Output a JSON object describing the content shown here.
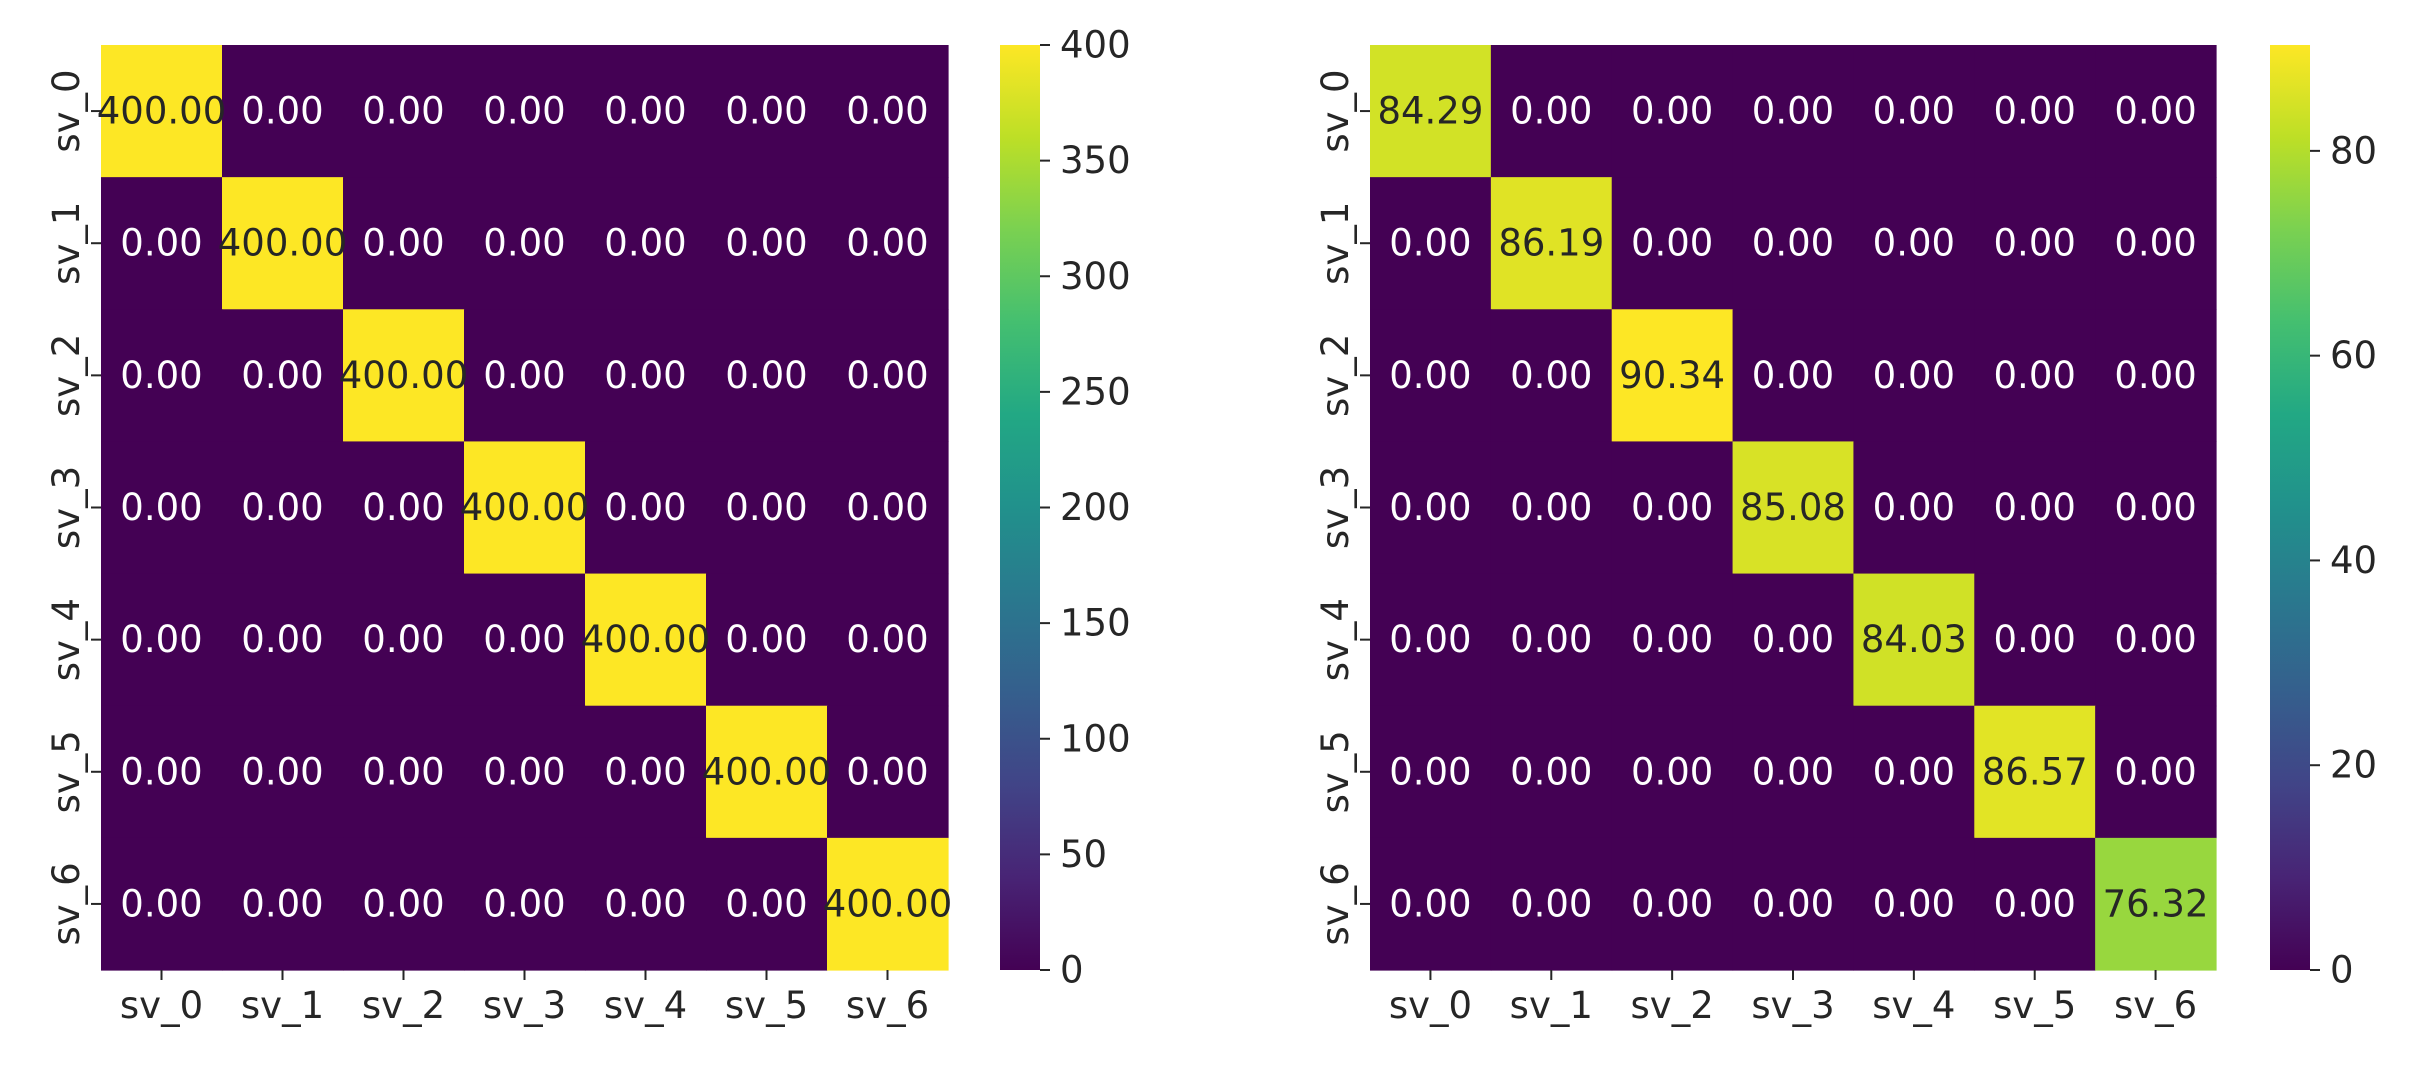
{
  "chart_data": [
    {
      "type": "heatmap",
      "title": "",
      "xlabel": "",
      "ylabel": "",
      "x_categories": [
        "sv_0",
        "sv_1",
        "sv_2",
        "sv_3",
        "sv_4",
        "sv_5",
        "sv_6"
      ],
      "y_categories": [
        "sv_0",
        "sv_1",
        "sv_2",
        "sv_3",
        "sv_4",
        "sv_5",
        "sv_6"
      ],
      "values": [
        [
          400,
          0,
          0,
          0,
          0,
          0,
          0
        ],
        [
          0,
          400,
          0,
          0,
          0,
          0,
          0
        ],
        [
          0,
          0,
          400,
          0,
          0,
          0,
          0
        ],
        [
          0,
          0,
          0,
          400,
          0,
          0,
          0
        ],
        [
          0,
          0,
          0,
          0,
          400,
          0,
          0
        ],
        [
          0,
          0,
          0,
          0,
          0,
          400,
          0
        ],
        [
          0,
          0,
          0,
          0,
          0,
          0,
          400
        ]
      ],
      "annotations": [
        [
          "400.00",
          "0.00",
          "0.00",
          "0.00",
          "0.00",
          "0.00",
          "0.00"
        ],
        [
          "0.00",
          "400.00",
          "0.00",
          "0.00",
          "0.00",
          "0.00",
          "0.00"
        ],
        [
          "0.00",
          "0.00",
          "400.00",
          "0.00",
          "0.00",
          "0.00",
          "0.00"
        ],
        [
          "0.00",
          "0.00",
          "0.00",
          "400.00",
          "0.00",
          "0.00",
          "0.00"
        ],
        [
          "0.00",
          "0.00",
          "0.00",
          "0.00",
          "400.00",
          "0.00",
          "0.00"
        ],
        [
          "0.00",
          "0.00",
          "0.00",
          "0.00",
          "0.00",
          "400.00",
          "0.00"
        ],
        [
          "0.00",
          "0.00",
          "0.00",
          "0.00",
          "0.00",
          "0.00",
          "400.00"
        ]
      ],
      "colormap": "viridis",
      "color_range": [
        0,
        400
      ],
      "colorbar_ticks": [
        0,
        50,
        100,
        150,
        200,
        250,
        300,
        350,
        400
      ],
      "colorbar_tick_labels": [
        "0",
        "50",
        "100",
        "150",
        "200",
        "250",
        "300",
        "350",
        "400"
      ],
      "grid": false,
      "legend": "colorbar-right"
    },
    {
      "type": "heatmap",
      "title": "",
      "xlabel": "",
      "ylabel": "",
      "x_categories": [
        "sv_0",
        "sv_1",
        "sv_2",
        "sv_3",
        "sv_4",
        "sv_5",
        "sv_6"
      ],
      "y_categories": [
        "sv_0",
        "sv_1",
        "sv_2",
        "sv_3",
        "sv_4",
        "sv_5",
        "sv_6"
      ],
      "values": [
        [
          84.29,
          0,
          0,
          0,
          0,
          0,
          0
        ],
        [
          0,
          86.19,
          0,
          0,
          0,
          0,
          0
        ],
        [
          0,
          0,
          90.34,
          0,
          0,
          0,
          0
        ],
        [
          0,
          0,
          0,
          85.08,
          0,
          0,
          0
        ],
        [
          0,
          0,
          0,
          0,
          84.03,
          0,
          0
        ],
        [
          0,
          0,
          0,
          0,
          0,
          86.57,
          0
        ],
        [
          0,
          0,
          0,
          0,
          0,
          0,
          76.32
        ]
      ],
      "annotations": [
        [
          "84.29",
          "0.00",
          "0.00",
          "0.00",
          "0.00",
          "0.00",
          "0.00"
        ],
        [
          "0.00",
          "86.19",
          "0.00",
          "0.00",
          "0.00",
          "0.00",
          "0.00"
        ],
        [
          "0.00",
          "0.00",
          "90.34",
          "0.00",
          "0.00",
          "0.00",
          "0.00"
        ],
        [
          "0.00",
          "0.00",
          "0.00",
          "85.08",
          "0.00",
          "0.00",
          "0.00"
        ],
        [
          "0.00",
          "0.00",
          "0.00",
          "0.00",
          "84.03",
          "0.00",
          "0.00"
        ],
        [
          "0.00",
          "0.00",
          "0.00",
          "0.00",
          "0.00",
          "86.57",
          "0.00"
        ],
        [
          "0.00",
          "0.00",
          "0.00",
          "0.00",
          "0.00",
          "0.00",
          "76.32"
        ]
      ],
      "colormap": "viridis",
      "color_range": [
        0,
        90.34
      ],
      "colorbar_ticks": [
        0,
        20,
        40,
        60,
        80
      ],
      "colorbar_tick_labels": [
        "0",
        "20",
        "40",
        "60",
        "80"
      ],
      "grid": false,
      "legend": "colorbar-right"
    }
  ]
}
